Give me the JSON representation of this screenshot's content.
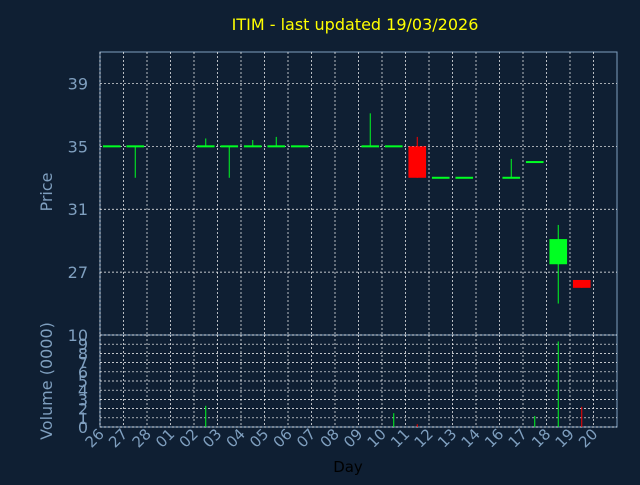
{
  "colors": {
    "background": "#0f1f33",
    "title": "#ffff00",
    "axis_text": "#7f9fbf",
    "xlabel_text": "#000000",
    "grid": "#ffffff",
    "up": "#00ff22",
    "down": "#ff0000"
  },
  "chart_data": [
    {
      "type": "candlestick",
      "title": "ITIM - last updated 19/03/2026",
      "ylabel": "Price",
      "ylim": [
        23,
        41
      ],
      "yticks": [
        27,
        31,
        35,
        39
      ],
      "grid": true,
      "x_categories": [
        "26",
        "27",
        "28",
        "01",
        "02",
        "03",
        "04",
        "05",
        "06",
        "07",
        "08",
        "09",
        "10",
        "11",
        "12",
        "13",
        "14",
        "16",
        "17",
        "18",
        "19",
        "20"
      ],
      "candles": [
        {
          "x": "26",
          "open": 35.0,
          "close": 35.0,
          "high": 35.0,
          "low": 35.0
        },
        {
          "x": "27",
          "open": 35.0,
          "close": 35.0,
          "high": 35.0,
          "low": 33.0
        },
        {
          "x": "02",
          "open": 35.0,
          "close": 35.0,
          "high": 35.5,
          "low": 35.0
        },
        {
          "x": "03",
          "open": 35.0,
          "close": 35.0,
          "high": 35.0,
          "low": 33.0
        },
        {
          "x": "04",
          "open": 35.0,
          "close": 35.0,
          "high": 35.4,
          "low": 35.0
        },
        {
          "x": "05",
          "open": 35.0,
          "close": 35.0,
          "high": 35.6,
          "low": 35.0
        },
        {
          "x": "06",
          "open": 35.0,
          "close": 35.0,
          "high": 35.0,
          "low": 35.0
        },
        {
          "x": "09",
          "open": 35.0,
          "close": 35.0,
          "high": 37.1,
          "low": 35.0
        },
        {
          "x": "10",
          "open": 35.0,
          "close": 35.0,
          "high": 35.0,
          "low": 35.0
        },
        {
          "x": "11",
          "open": 35.0,
          "close": 33.0,
          "high": 35.6,
          "low": 33.0
        },
        {
          "x": "12",
          "open": 33.0,
          "close": 33.0,
          "high": 33.0,
          "low": 33.0
        },
        {
          "x": "13",
          "open": 33.0,
          "close": 33.0,
          "high": 33.0,
          "low": 33.0
        },
        {
          "x": "16",
          "open": 33.0,
          "close": 33.0,
          "high": 34.2,
          "low": 33.0
        },
        {
          "x": "17",
          "open": 34.0,
          "close": 34.0,
          "high": 34.0,
          "low": 34.0
        },
        {
          "x": "18",
          "open": 27.5,
          "close": 29.1,
          "high": 30.0,
          "low": 25.0
        },
        {
          "x": "19",
          "open": 26.5,
          "close": 26.0,
          "high": 26.5,
          "low": 26.0
        }
      ]
    },
    {
      "type": "bar",
      "ylabel": "Volume (0000)",
      "xlabel": "Day",
      "ylim": [
        0,
        10
      ],
      "yticks": [
        0,
        1,
        2,
        3,
        4,
        5,
        6,
        7,
        8,
        9,
        10
      ],
      "grid": true,
      "x_categories": [
        "26",
        "27",
        "28",
        "01",
        "02",
        "03",
        "04",
        "05",
        "06",
        "07",
        "08",
        "09",
        "10",
        "11",
        "12",
        "13",
        "14",
        "16",
        "17",
        "18",
        "19",
        "20"
      ],
      "bars": [
        {
          "x": "02",
          "value": 2.3,
          "color": "up"
        },
        {
          "x": "10",
          "value": 1.5,
          "color": "up"
        },
        {
          "x": "11",
          "value": 0.3,
          "color": "down"
        },
        {
          "x": "17",
          "value": 1.2,
          "color": "up"
        },
        {
          "x": "18",
          "value": 9.3,
          "color": "up"
        },
        {
          "x": "19",
          "value": 2.2,
          "color": "down"
        }
      ]
    }
  ]
}
